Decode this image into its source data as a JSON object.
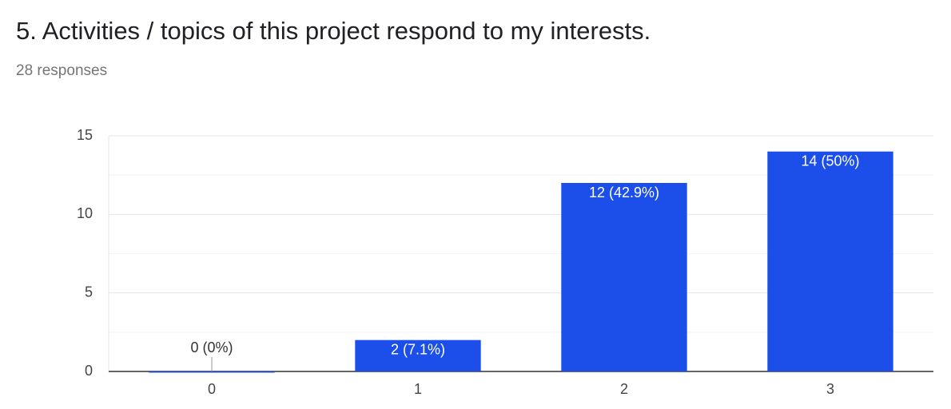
{
  "chart_data": {
    "type": "bar",
    "title": "5. Activities / topics of this project respond to my interests.",
    "subtitle": "28 responses",
    "categories": [
      "0",
      "1",
      "2",
      "3"
    ],
    "values": [
      0,
      2,
      12,
      14
    ],
    "value_labels": [
      "0 (0%)",
      "2 (7.1%)",
      "12 (42.9%)",
      "14 (50%)"
    ],
    "color": "#1c4fea",
    "ylim": [
      0,
      15
    ],
    "yticks": [
      0,
      5,
      10,
      15
    ],
    "minor_yticks": [
      2.5,
      7.5,
      12.5
    ],
    "grid": true
  }
}
